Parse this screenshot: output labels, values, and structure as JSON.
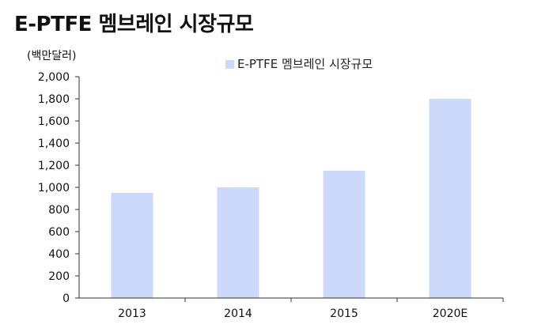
{
  "chart_data": {
    "type": "bar",
    "title": "E-PTFE 멤브레인 시장규모",
    "unit_label": "(백만달러)",
    "legend_label": "E-PTFE 멤브레인 시장규모",
    "legend_position": "top-center",
    "categories": [
      "2013",
      "2014",
      "2015",
      "2020E"
    ],
    "values": [
      950,
      1000,
      1150,
      1800
    ],
    "ylim": [
      0,
      2000
    ],
    "y_ticks": [
      "0",
      "200",
      "400",
      "600",
      "800",
      "1,000",
      "1,200",
      "1,400",
      "1,600",
      "1,800",
      "2,000"
    ],
    "grid": false,
    "bar_color": "#ccd9fb"
  }
}
